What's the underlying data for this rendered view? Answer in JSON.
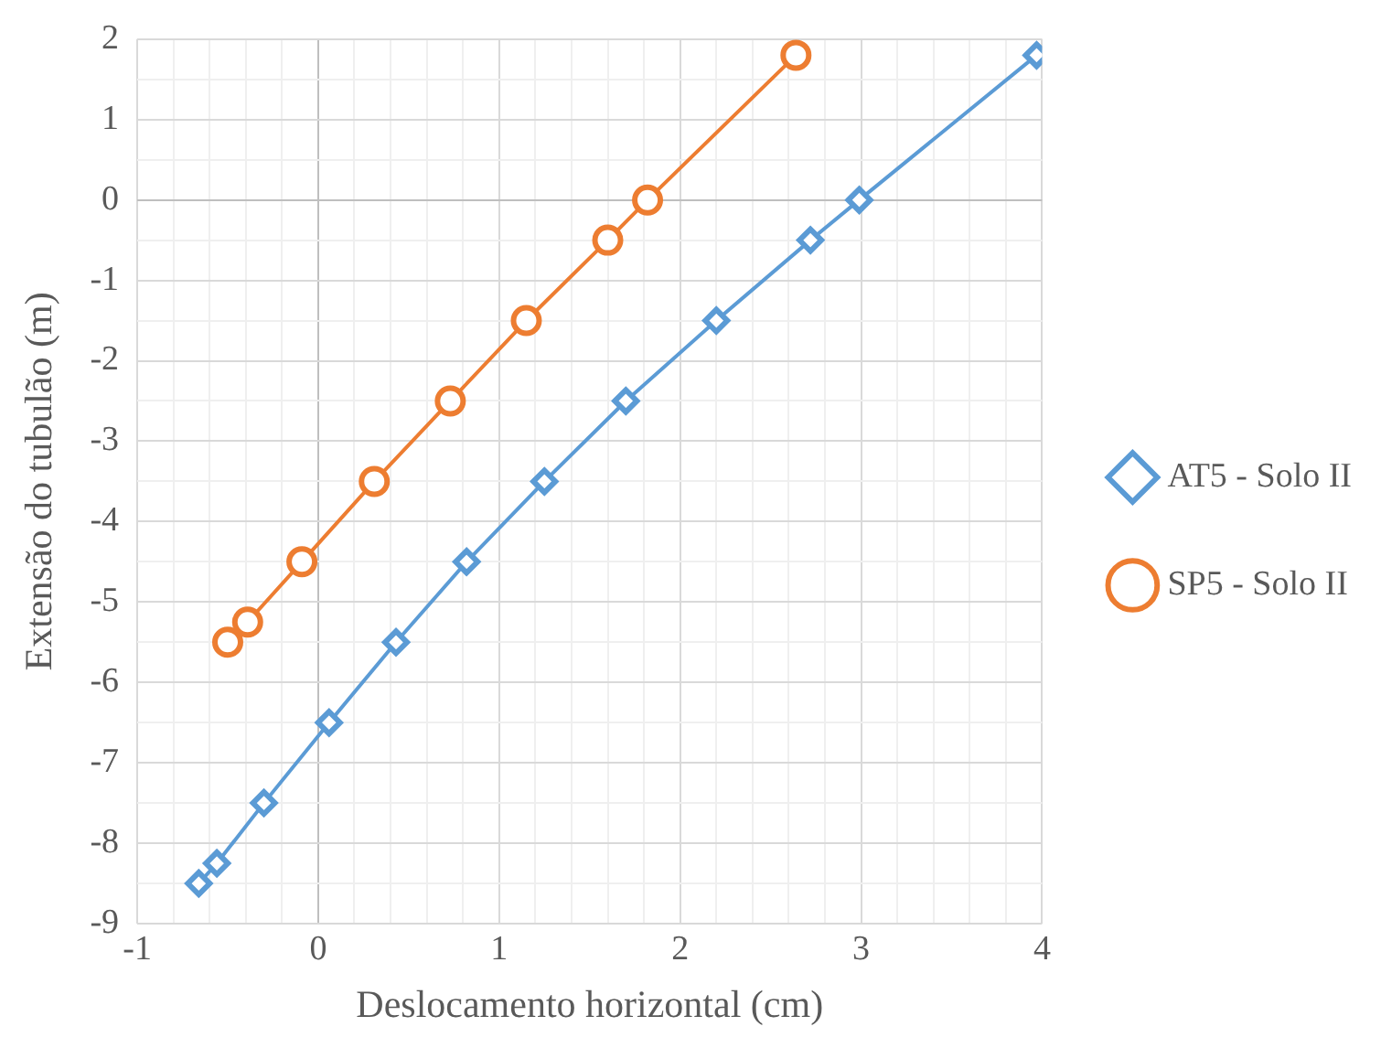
{
  "chart_data": {
    "type": "line",
    "xlabel": "Deslocamento horizontal (cm)",
    "ylabel": "Extensão do tubulão (m)",
    "xlim": [
      -1,
      4
    ],
    "ylim": [
      -9,
      2
    ],
    "xticks": [
      -1,
      {
        "value": -0.8,
        "label": null
      },
      {
        "value": -0.6,
        "label": null
      },
      {
        "value": -0.4,
        "label": null
      },
      {
        "value": -0.2,
        "label": null
      },
      0,
      {
        "value": 0.2,
        "label": null
      },
      {
        "value": 0.4,
        "label": null
      },
      {
        "value": 0.6,
        "label": null
      },
      {
        "value": 0.8,
        "label": null
      },
      1,
      {
        "value": 1.2,
        "label": null
      },
      {
        "value": 1.4,
        "label": null
      },
      {
        "value": 1.6,
        "label": null
      },
      {
        "value": 1.8,
        "label": null
      },
      2,
      {
        "value": 2.2,
        "label": null
      },
      {
        "value": 2.4,
        "label": null
      },
      {
        "value": 2.6,
        "label": null
      },
      {
        "value": 2.8,
        "label": null
      },
      3,
      {
        "value": 3.2,
        "label": null
      },
      {
        "value": 3.4,
        "label": null
      },
      {
        "value": 3.6,
        "label": null
      },
      {
        "value": 3.8,
        "label": null
      },
      4
    ],
    "yticks": [
      -9,
      {
        "value": -8.5,
        "label": null
      },
      -8,
      {
        "value": -7.5,
        "label": null
      },
      -7,
      {
        "value": -6.5,
        "label": null
      },
      -6,
      {
        "value": -5.5,
        "label": null
      },
      -5,
      {
        "value": -4.5,
        "label": null
      },
      -4,
      {
        "value": -3.5,
        "label": null
      },
      -3,
      {
        "value": -2.5,
        "label": null
      },
      -2,
      {
        "value": -1.5,
        "label": null
      },
      -1,
      {
        "value": -0.5,
        "label": null
      },
      0,
      {
        "value": 0.5,
        "label": null
      },
      1,
      {
        "value": 1.5,
        "label": null
      },
      2
    ],
    "grid": true,
    "legend": "right",
    "line_style": "solid",
    "series": [
      {
        "name": "AT5 - Solo II",
        "color": "#5b9bd5",
        "marker": "diamond",
        "x": [
          -0.66,
          -0.56,
          -0.3,
          0.06,
          0.43,
          0.82,
          1.25,
          1.7,
          2.2,
          2.72,
          2.99,
          3.97
        ],
        "values": [
          -8.5,
          -8.25,
          -7.5,
          -6.5,
          -5.5,
          -4.5,
          -3.5,
          -2.5,
          -1.5,
          -0.5,
          0,
          1.8
        ]
      },
      {
        "name": "SP5 - Solo II",
        "color": "#ed7d31",
        "marker": "circle",
        "x": [
          -0.5,
          -0.39,
          -0.09,
          0.31,
          0.73,
          1.15,
          1.6,
          1.82,
          2.64
        ],
        "values": [
          -5.5,
          -5.25,
          -4.5,
          -3.5,
          -2.5,
          -1.5,
          -0.5,
          0,
          1.8
        ]
      }
    ]
  }
}
